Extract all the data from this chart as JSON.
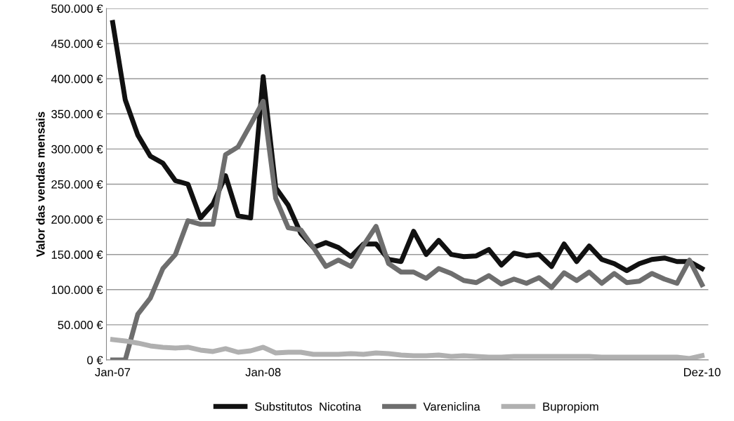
{
  "chart_data": {
    "type": "line",
    "ylabel": "Valor das vendas mensais",
    "categories": [
      "Jan-07",
      null,
      null,
      null,
      null,
      null,
      null,
      null,
      null,
      null,
      null,
      null,
      "Jan-08",
      null,
      null,
      null,
      null,
      null,
      null,
      null,
      null,
      null,
      null,
      null,
      null,
      null,
      null,
      null,
      null,
      null,
      null,
      null,
      null,
      null,
      null,
      null,
      null,
      null,
      null,
      null,
      null,
      null,
      null,
      null,
      null,
      null,
      null,
      "Dez-10"
    ],
    "series": [
      {
        "name": "Substitutos  Nicotina",
        "color": "#111111",
        "values": [
          480000,
          370000,
          320000,
          290000,
          280000,
          255000,
          250000,
          202000,
          222000,
          262000,
          205000,
          202000,
          403000,
          245000,
          220000,
          180000,
          160000,
          167000,
          160000,
          147000,
          165000,
          165000,
          143000,
          140000,
          183000,
          150000,
          170000,
          150000,
          147000,
          148000,
          157000,
          135000,
          152000,
          148000,
          150000,
          133000,
          165000,
          140000,
          162000,
          143000,
          137000,
          127000,
          137000,
          143000,
          145000,
          140000,
          140000,
          130000
        ]
      },
      {
        "name": "Vareniclina",
        "color": "#6e6e6e",
        "values": [
          0,
          0,
          65000,
          88000,
          130000,
          150000,
          198000,
          193000,
          193000,
          292000,
          303000,
          335000,
          368000,
          230000,
          188000,
          185000,
          160000,
          133000,
          142000,
          133000,
          163000,
          190000,
          137000,
          125000,
          125000,
          116000,
          130000,
          123000,
          113000,
          110000,
          120000,
          108000,
          115000,
          109000,
          117000,
          103000,
          124000,
          113000,
          125000,
          109000,
          123000,
          110000,
          112000,
          123000,
          115000,
          109000,
          142000,
          107000
        ]
      },
      {
        "name": "Bupropiom",
        "color": "#b0b0b0",
        "values": [
          29000,
          27000,
          24000,
          20000,
          18000,
          17000,
          18000,
          14000,
          12000,
          16000,
          11000,
          13000,
          18000,
          10000,
          11000,
          11000,
          8000,
          8000,
          8000,
          9000,
          8000,
          10000,
          9000,
          7000,
          6000,
          6000,
          7000,
          5000,
          6000,
          5000,
          4000,
          4000,
          5000,
          5000,
          5000,
          5000,
          5000,
          5000,
          5000,
          4000,
          4000,
          4000,
          4000,
          4000,
          4000,
          4000,
          2000,
          6000
        ]
      }
    ],
    "ylim": [
      0,
      500000
    ],
    "yticks": [
      {
        "value": 0,
        "label": "0 €"
      },
      {
        "value": 50000,
        "label": "50.000 €"
      },
      {
        "value": 100000,
        "label": "100.000 €"
      },
      {
        "value": 150000,
        "label": "150.000 €"
      },
      {
        "value": 200000,
        "label": "200.000 €"
      },
      {
        "value": 250000,
        "label": "250.000 €"
      },
      {
        "value": 300000,
        "label": "300.000 €"
      },
      {
        "value": 350000,
        "label": "350.000 €"
      },
      {
        "value": 400000,
        "label": "400.000 €"
      },
      {
        "value": 450000,
        "label": "450.000 €"
      },
      {
        "value": 500000,
        "label": "500.000 €"
      }
    ],
    "grid": "y",
    "legend": "bottom",
    "marker": "none",
    "line_style": "solid"
  }
}
